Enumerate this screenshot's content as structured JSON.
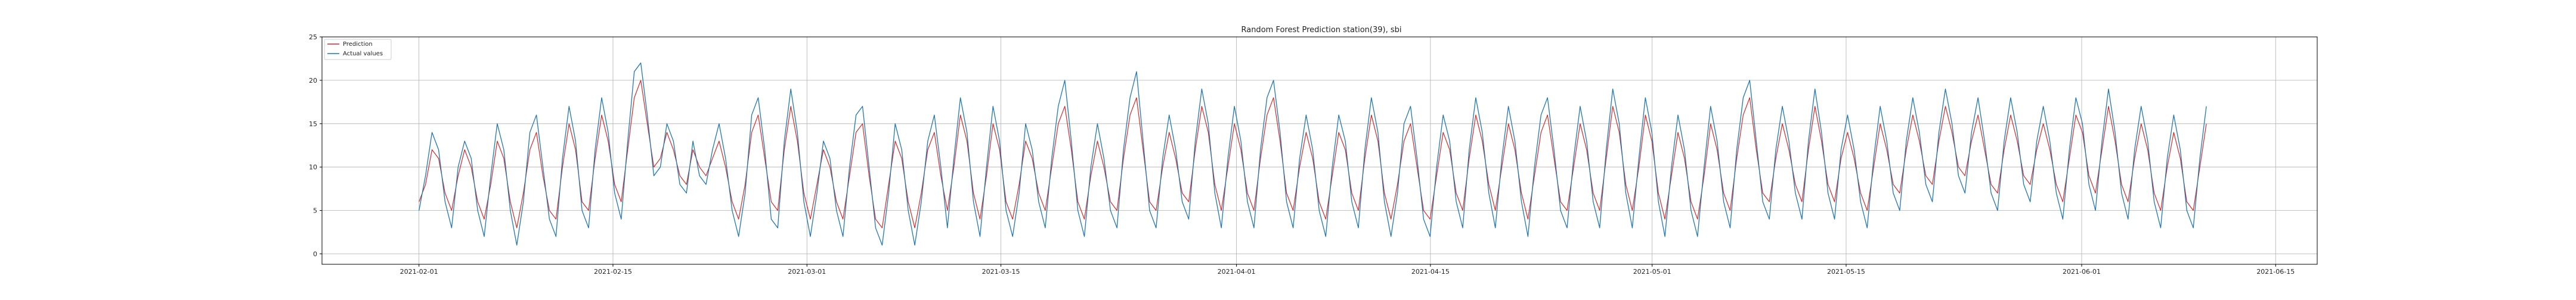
{
  "chart_data": {
    "type": "line",
    "title": "Random Forest Prediction  station(39), sbi",
    "xlabel": "",
    "ylabel": "",
    "x_ticks": [
      "2021-02-01",
      "2021-02-15",
      "2021-03-01",
      "2021-03-15",
      "2021-04-01",
      "2021-04-15",
      "2021-05-01",
      "2021-05-15",
      "2021-06-01",
      "2021-06-15"
    ],
    "y_ticks": [
      0,
      5,
      10,
      15,
      20,
      25
    ],
    "xlim": [
      "2021-01-25",
      "2021-06-18"
    ],
    "ylim": [
      -1.2,
      25
    ],
    "grid": true,
    "legend_position": "top-left",
    "series_x_range": [
      "2021-02-01",
      "2021-06-10"
    ],
    "series": [
      {
        "name": "Prediction",
        "color": "#d62728",
        "values": [
          6,
          8,
          12,
          11,
          7,
          5,
          9,
          12,
          10,
          6,
          4,
          8,
          13,
          11,
          6,
          3,
          7,
          12,
          14,
          9,
          5,
          4,
          10,
          15,
          12,
          6,
          5,
          11,
          16,
          13,
          8,
          6,
          12,
          18,
          20,
          15,
          10,
          11,
          14,
          12,
          9,
          8,
          12,
          10,
          9,
          11,
          13,
          10,
          6,
          4,
          8,
          14,
          16,
          11,
          6,
          5,
          12,
          17,
          13,
          7,
          4,
          8,
          12,
          10,
          6,
          4,
          9,
          14,
          15,
          9,
          4,
          3,
          8,
          13,
          11,
          6,
          3,
          7,
          12,
          14,
          9,
          5,
          10,
          16,
          13,
          7,
          4,
          9,
          15,
          12,
          6,
          4,
          8,
          13,
          11,
          7,
          5,
          10,
          15,
          17,
          12,
          6,
          4,
          9,
          13,
          10,
          6,
          5,
          11,
          16,
          18,
          12,
          6,
          5,
          10,
          14,
          11,
          7,
          6,
          12,
          17,
          14,
          8,
          5,
          10,
          15,
          12,
          7,
          5,
          11,
          16,
          18,
          13,
          7,
          5,
          10,
          14,
          11,
          6,
          4,
          9,
          14,
          12,
          7,
          5,
          11,
          16,
          13,
          7,
          4,
          8,
          13,
          15,
          10,
          5,
          4,
          9,
          14,
          12,
          7,
          5,
          11,
          16,
          13,
          8,
          5,
          10,
          15,
          12,
          7,
          4,
          9,
          14,
          16,
          11,
          6,
          5,
          10,
          15,
          12,
          7,
          5,
          11,
          17,
          14,
          8,
          5,
          10,
          16,
          13,
          7,
          4,
          9,
          14,
          11,
          6,
          4,
          9,
          15,
          12,
          7,
          5,
          11,
          16,
          18,
          12,
          7,
          6,
          11,
          15,
          12,
          8,
          6,
          12,
          17,
          13,
          8,
          6,
          11,
          14,
          11,
          7,
          5,
          10,
          15,
          12,
          8,
          7,
          12,
          16,
          13,
          9,
          8,
          13,
          17,
          14,
          10,
          9,
          13,
          16,
          12,
          8,
          7,
          12,
          16,
          13,
          9,
          8,
          12,
          15,
          12,
          8,
          6,
          11,
          16,
          14,
          9,
          7,
          12,
          17,
          13,
          8,
          6,
          11,
          15,
          12,
          7,
          5,
          10,
          14,
          11,
          6,
          5,
          10,
          15
        ]
      },
      {
        "name": "Actual values",
        "color": "#1f77b4",
        "values": [
          5,
          9,
          14,
          12,
          6,
          3,
          10,
          13,
          11,
          5,
          2,
          9,
          15,
          12,
          5,
          1,
          6,
          14,
          16,
          10,
          4,
          2,
          11,
          17,
          13,
          5,
          3,
          12,
          18,
          14,
          7,
          4,
          13,
          21,
          22,
          16,
          9,
          10,
          15,
          13,
          8,
          7,
          13,
          9,
          8,
          12,
          15,
          11,
          5,
          2,
          7,
          16,
          18,
          12,
          4,
          3,
          13,
          19,
          14,
          6,
          2,
          7,
          13,
          11,
          5,
          2,
          10,
          16,
          17,
          10,
          3,
          1,
          7,
          15,
          12,
          5,
          1,
          6,
          13,
          16,
          10,
          3,
          11,
          18,
          14,
          6,
          2,
          10,
          17,
          13,
          5,
          2,
          7,
          15,
          12,
          6,
          3,
          11,
          17,
          20,
          13,
          5,
          2,
          10,
          15,
          11,
          5,
          3,
          12,
          18,
          21,
          13,
          5,
          3,
          11,
          16,
          12,
          6,
          4,
          13,
          19,
          15,
          7,
          3,
          11,
          17,
          13,
          6,
          3,
          12,
          18,
          20,
          14,
          6,
          3,
          11,
          16,
          12,
          5,
          2,
          10,
          16,
          13,
          6,
          3,
          12,
          18,
          14,
          6,
          2,
          7,
          15,
          17,
          11,
          4,
          2,
          10,
          16,
          13,
          6,
          3,
          12,
          18,
          14,
          7,
          3,
          11,
          17,
          13,
          6,
          2,
          10,
          16,
          18,
          12,
          5,
          3,
          11,
          17,
          13,
          6,
          3,
          12,
          19,
          15,
          7,
          3,
          11,
          18,
          14,
          6,
          2,
          10,
          16,
          12,
          5,
          2,
          10,
          17,
          13,
          6,
          3,
          12,
          18,
          20,
          13,
          6,
          4,
          12,
          17,
          13,
          7,
          4,
          13,
          19,
          14,
          7,
          4,
          12,
          16,
          12,
          6,
          3,
          11,
          17,
          13,
          7,
          5,
          13,
          18,
          14,
          8,
          6,
          14,
          19,
          15,
          9,
          7,
          14,
          18,
          13,
          7,
          5,
          13,
          18,
          14,
          8,
          6,
          13,
          17,
          13,
          7,
          4,
          12,
          18,
          15,
          8,
          5,
          13,
          19,
          14,
          7,
          4,
          12,
          17,
          13,
          6,
          3,
          11,
          16,
          12,
          5,
          3,
          11,
          17
        ]
      }
    ]
  }
}
